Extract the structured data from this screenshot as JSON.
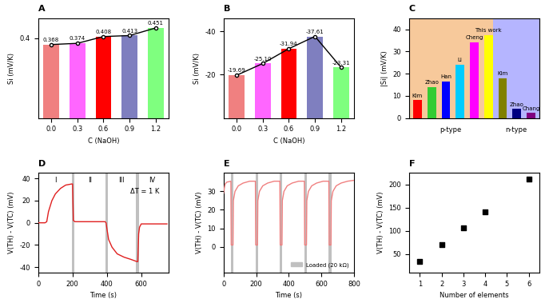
{
  "chart_data": [
    {
      "title": "A",
      "type": "bar",
      "x_label": "C (NaOH)",
      "y_label": "Si (mV/K)",
      "categories": [
        "0.0",
        "0.3",
        "0.6",
        "0.9",
        "1.2"
      ],
      "ylim": [
        0,
        0.5
      ],
      "yticks": [
        0.4
      ],
      "series": [
        {
          "type": "bar",
          "values": [
            0.368,
            0.374,
            0.408,
            0.413,
            0.451
          ],
          "colors": [
            "#f08080",
            "#ff66ff",
            "#ff0000",
            "#7f7fbf",
            "#7fff7f"
          ],
          "data_labels": true
        },
        {
          "type": "line",
          "values": [
            0.368,
            0.374,
            0.408,
            0.413,
            0.451
          ],
          "color": "#000000",
          "marker": "o",
          "line_style": "solid"
        }
      ]
    },
    {
      "title": "B",
      "type": "bar",
      "x_label": "C (NaOH)",
      "y_label": "Si (mV/K)",
      "categories": [
        "0.0",
        "0.3",
        "0.6",
        "0.9",
        "1.2"
      ],
      "ylim": [
        0,
        -46
      ],
      "yticks": [
        -20,
        -40
      ],
      "series": [
        {
          "type": "bar",
          "values": [
            -19.69,
            -25.1,
            -31.94,
            -37.61,
            -23.31
          ],
          "value_labels": [
            "-19.69",
            "-25.10",
            "-31.94",
            "-37.61",
            "-23.31"
          ],
          "colors": [
            "#f08080",
            "#ff66ff",
            "#ff0000",
            "#7f7fbf",
            "#7fff7f"
          ],
          "data_labels": true
        },
        {
          "type": "line",
          "values": [
            -19.69,
            -25.1,
            -31.94,
            -37.61,
            -23.31
          ],
          "color": "#000000",
          "marker": "o",
          "line_style": "solid"
        }
      ]
    },
    {
      "title": "C",
      "type": "bar",
      "y_label": "|Si| (mV/K)",
      "tick_labels": "y",
      "categories": [
        "Kim",
        "Zhao",
        "Han",
        "Li",
        "Cheng",
        "This work",
        "Kim",
        "Zhao",
        "Chang"
      ],
      "ylim": [
        0,
        45
      ],
      "yticks": [
        0,
        10,
        20,
        30,
        40
      ],
      "regions": [
        {
          "label": "p-type",
          "from": -0.6,
          "to": 5.3,
          "color": "#f7c99b"
        },
        {
          "label": "n-type",
          "from": 5.3,
          "to": 8.6,
          "color": "#b5b5ff"
        }
      ],
      "series": [
        {
          "type": "bar",
          "values": [
            8,
            14,
            16.5,
            24,
            34,
            37.5,
            18,
            4,
            2.2
          ],
          "colors": [
            "#ff0000",
            "#33cc33",
            "#0000ff",
            "#00ccff",
            "#ff00ff",
            "#ffff00",
            "#808000",
            "#000080",
            "#800080"
          ]
        }
      ]
    },
    {
      "title": "D",
      "type": "line",
      "x_label": "Time (s)",
      "y_label": "V(TH) - V(TC) (mV)",
      "xlim": [
        0,
        760
      ],
      "xticks": [
        0,
        200,
        400,
        600
      ],
      "ylim": [
        -45,
        45
      ],
      "yticks": [
        -40,
        -20,
        0,
        20,
        40
      ],
      "bands": {
        "color": "#c0c0c0",
        "ranges": [
          [
            195,
            210
          ],
          [
            390,
            405
          ],
          [
            570,
            585
          ]
        ]
      },
      "annotations": [
        {
          "text": "I",
          "x": 100,
          "y": 38
        },
        {
          "text": "II",
          "x": 300,
          "y": 38
        },
        {
          "text": "III",
          "x": 485,
          "y": 38
        },
        {
          "text": "IV",
          "x": 665,
          "y": 38
        },
        {
          "text": "ΔT = 1 K",
          "x": 620,
          "y": 28
        }
      ],
      "series": [
        {
          "type": "line",
          "color": "#e02020",
          "line_style": "solid",
          "x": [
            0,
            40,
            50,
            60,
            80,
            100,
            130,
            160,
            195,
            200,
            205,
            215,
            250,
            300,
            390,
            395,
            400,
            410,
            430,
            460,
            500,
            540,
            575,
            580,
            585,
            590,
            600,
            650,
            700,
            750
          ],
          "values": [
            0,
            0,
            1,
            10,
            20,
            26,
            31,
            34,
            35,
            35,
            2,
            1,
            1,
            1,
            1,
            0,
            -5,
            -15,
            -22,
            -28,
            -31,
            -33,
            -35,
            -35,
            -10,
            -4,
            -1,
            -1,
            -1,
            -1
          ]
        }
      ]
    },
    {
      "title": "E",
      "type": "line",
      "x_label": "Time (s)",
      "y_label": "V(TH) - V(TC) (mV)",
      "xlim": [
        0,
        800
      ],
      "xticks": [
        0,
        200,
        400,
        600,
        800
      ],
      "ylim": [
        -14,
        40
      ],
      "yticks": [
        0,
        10,
        20,
        30
      ],
      "legend": "lower right",
      "bands": {
        "name": "Loaded (20 kΩ)",
        "color": "#c0c0c0",
        "ranges": [
          [
            45,
            60
          ],
          [
            195,
            210
          ],
          [
            345,
            360
          ],
          [
            495,
            510
          ],
          [
            645,
            660
          ]
        ]
      },
      "series": [
        {
          "type": "line",
          "color": "#f08080",
          "line_style": "solid",
          "x": [
            0,
            5,
            10,
            20,
            45,
            47,
            58,
            60,
            70,
            90,
            120,
            160,
            195,
            197,
            208,
            210,
            220,
            240,
            270,
            310,
            345,
            347,
            358,
            360,
            370,
            390,
            420,
            460,
            495,
            497,
            508,
            510,
            520,
            540,
            570,
            610,
            645,
            647,
            658,
            660,
            670,
            690,
            720,
            760,
            800
          ],
          "values": [
            29,
            32,
            34,
            35,
            35.5,
            1,
            1,
            25,
            30,
            33,
            34.5,
            35.5,
            35.5,
            1,
            1,
            25,
            30,
            33,
            34.5,
            35.5,
            35.5,
            1,
            1,
            25,
            30,
            33,
            34.5,
            35.5,
            35.5,
            1,
            1,
            25,
            30,
            33,
            34.5,
            35.5,
            35.5,
            1,
            1,
            25,
            30,
            33,
            34.5,
            35.5,
            36
          ]
        }
      ]
    },
    {
      "title": "F",
      "type": "scatter",
      "x_label": "Number of elements",
      "y_label": "V(TH) - V(TC) (mV)",
      "xlim": [
        0.5,
        6.5
      ],
      "xticks": [
        1,
        2,
        3,
        4,
        5,
        6
      ],
      "ylim": [
        10,
        225
      ],
      "yticks": [
        50,
        100,
        150,
        200
      ],
      "series": [
        {
          "type": "scatter",
          "color": "#000000",
          "marker": "s",
          "x": [
            1,
            2,
            3,
            4,
            6
          ],
          "values": [
            35,
            71,
            106,
            141,
            211
          ]
        }
      ]
    }
  ]
}
